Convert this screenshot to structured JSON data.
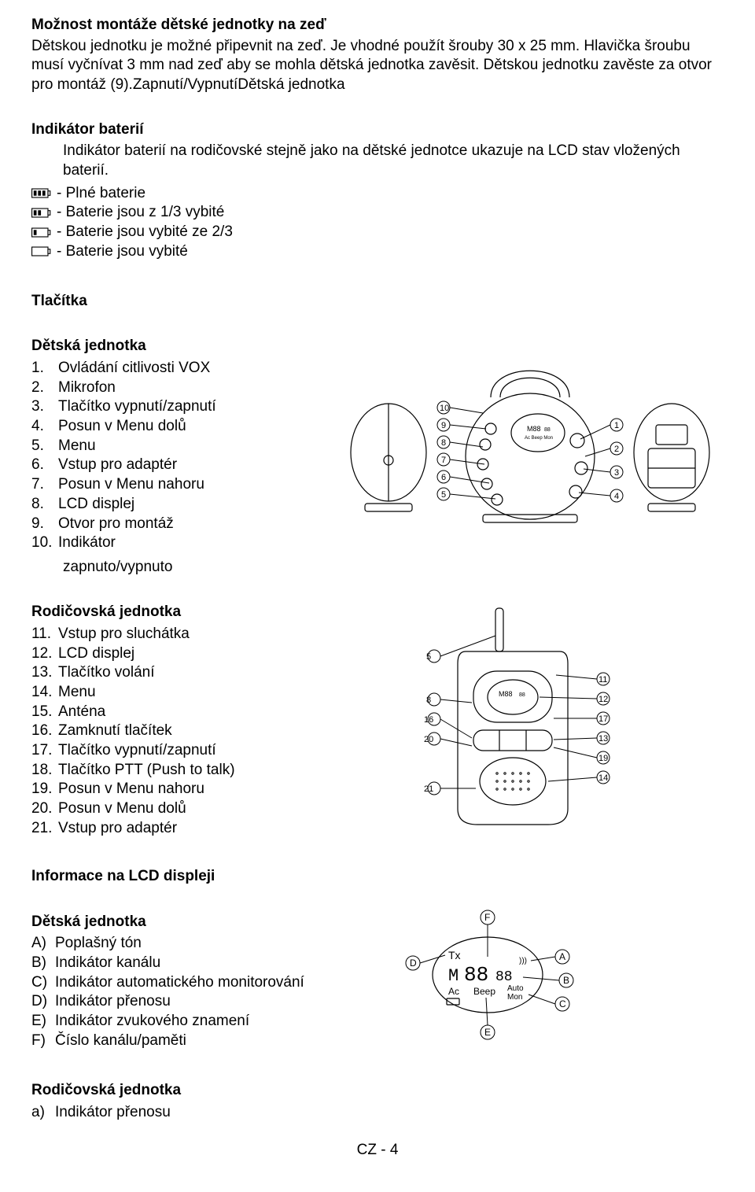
{
  "mount": {
    "heading": "Možnost montáže dětské jednotky na zeď",
    "p1": "Dětskou jednotku je možné připevnit na zeď. Je vhodné použít šrouby 30 x 25 mm. Hlavička šroubu musí vyčnívat 3 mm nad zeď aby se mohla dětská jednotka zavěsit. Dětskou jednotku zavěste za otvor pro montáž (9).Zapnutí/VypnutíDětská jednotka"
  },
  "battery": {
    "heading": "Indikátor baterií",
    "p1": "Indikátor baterií na rodičovské stejně jako na dětské jednotce ukazuje na LCD stav vložených baterií.",
    "items": [
      {
        "label": " - Plné baterie",
        "fill": 3
      },
      {
        "label": " - Baterie jsou z 1/3 vybité",
        "fill": 2
      },
      {
        "label": " - Baterie jsou vybité ze 2/3",
        "fill": 1
      },
      {
        "label": " - Baterie jsou vybité",
        "fill": 0
      }
    ]
  },
  "buttons_heading": "Tlačítka",
  "child_unit": {
    "heading": "Dětská jednotka",
    "items": [
      {
        "n": "1.",
        "t": "Ovládání citlivosti VOX"
      },
      {
        "n": "2.",
        "t": "Mikrofon"
      },
      {
        "n": "3.",
        "t": "Tlačítko vypnutí/zapnutí"
      },
      {
        "n": "4.",
        "t": "Posun v Menu dolů"
      },
      {
        "n": "5.",
        "t": "Menu"
      },
      {
        "n": "6.",
        "t": "Vstup pro adaptér"
      },
      {
        "n": "7.",
        "t": "Posun v Menu nahoru"
      },
      {
        "n": "8.",
        "t": "LCD displej"
      },
      {
        "n": "9.",
        "t": "Otvor pro montáž"
      },
      {
        "n": "10.",
        "t": "Indikátor"
      }
    ],
    "last_line": "zapnuto/vypnuto"
  },
  "parent_unit": {
    "heading": "Rodičovská jednotka",
    "items": [
      {
        "n": "11.",
        "t": "Vstup pro sluchátka"
      },
      {
        "n": "12.",
        "t": "LCD displej"
      },
      {
        "n": "13.",
        "t": "Tlačítko volání"
      },
      {
        "n": "14.",
        "t": "Menu"
      },
      {
        "n": "15.",
        "t": "Anténa"
      },
      {
        "n": "16.",
        "t": "Zamknutí tlačítek"
      },
      {
        "n": "17.",
        "t": "Tlačítko vypnutí/zapnutí"
      },
      {
        "n": "18.",
        "t": "Tlačítko PTT (Push to talk)"
      },
      {
        "n": "19.",
        "t": "Posun v Menu nahoru"
      },
      {
        "n": "20.",
        "t": "Posun v Menu dolů"
      },
      {
        "n": "21.",
        "t": "Vstup pro adaptér"
      }
    ]
  },
  "lcd_heading": "Informace na LCD displeji",
  "lcd_child": {
    "heading": "Dětská jednotka",
    "items": [
      {
        "n": "A)",
        "t": "Poplašný tón"
      },
      {
        "n": "B)",
        "t": "Indikátor kanálu"
      },
      {
        "n": "C)",
        "t": "Indikátor automatického monitorování"
      },
      {
        "n": "D)",
        "t": "Indikátor přenosu"
      },
      {
        "n": "E)",
        "t": "Indikátor zvukového znamení"
      },
      {
        "n": "F)",
        "t": "Číslo kanálu/paměti"
      }
    ]
  },
  "lcd_parent": {
    "heading": "Rodičovská jednotka",
    "items": [
      {
        "n": "a)",
        "t": "Indikátor přenosu"
      }
    ]
  },
  "footer": "CZ - 4",
  "colors": {
    "text": "#000000",
    "bg": "#ffffff",
    "stroke": "#000000",
    "fill_gray": "#9ca3af"
  }
}
